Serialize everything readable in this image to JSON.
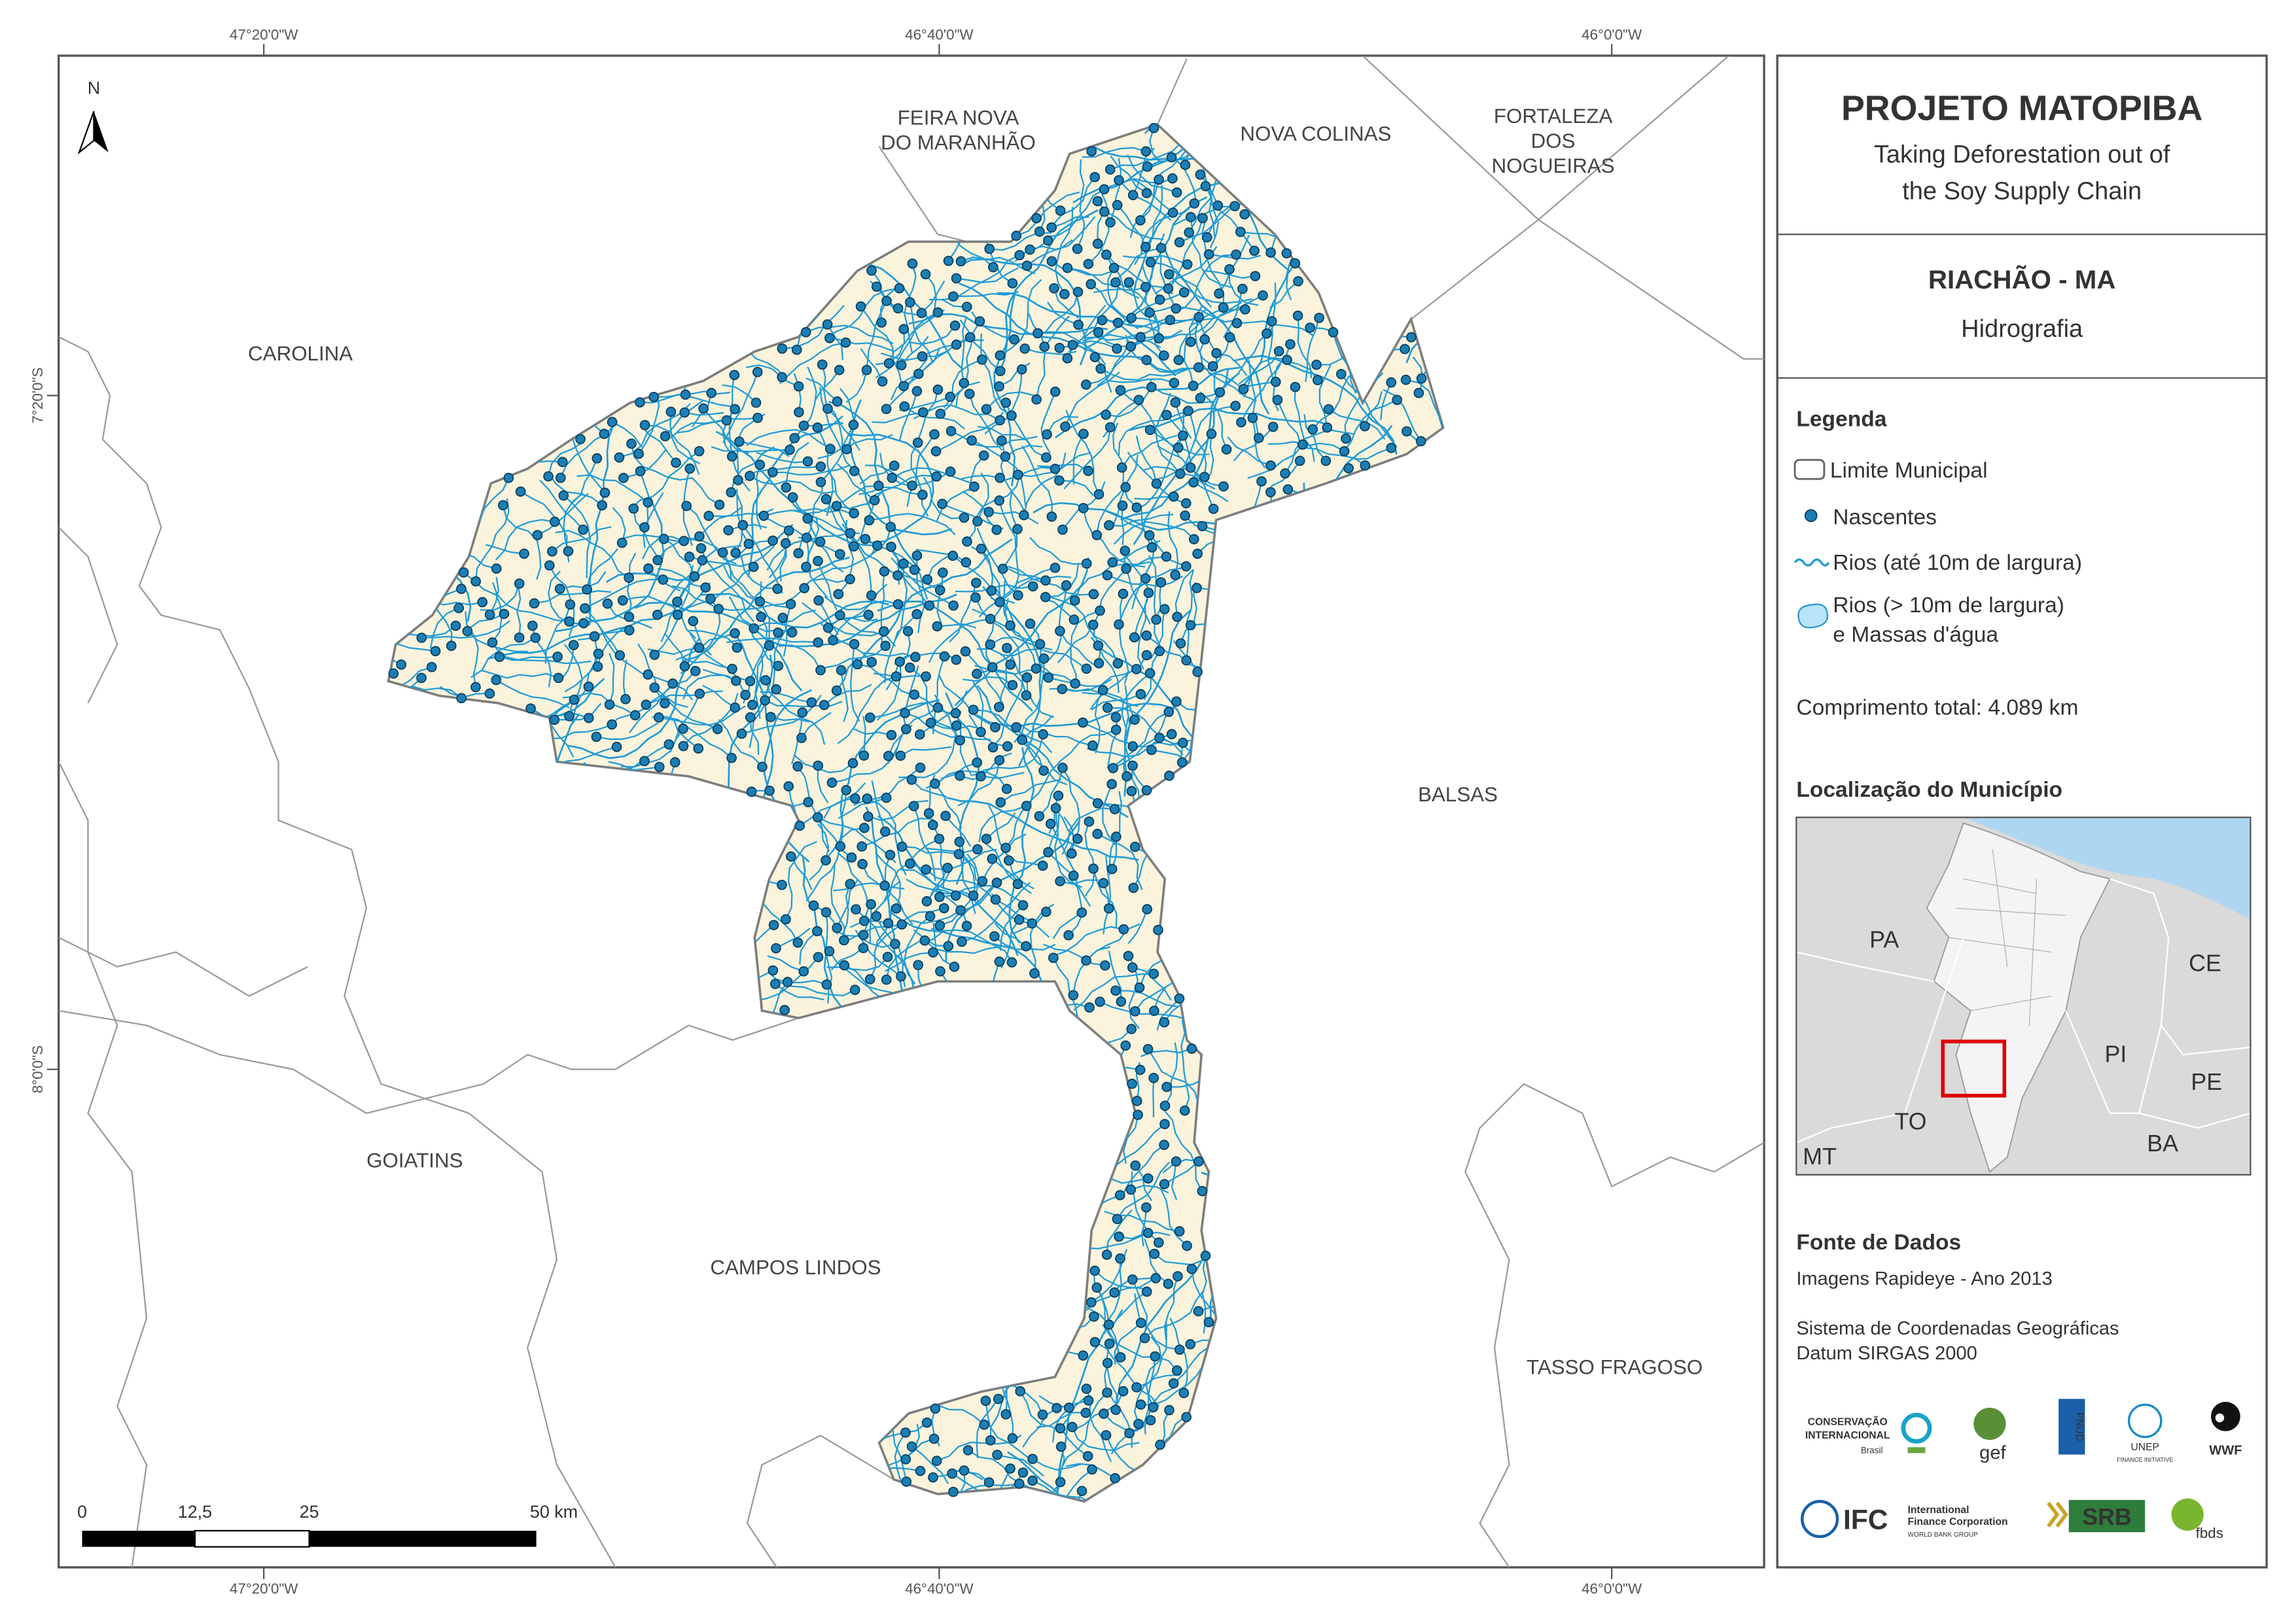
{
  "map": {
    "coordinates_top": [
      "47°20'0\"W",
      "46°40'0\"W",
      "46°0'0\"W"
    ],
    "coordinates_bottom": [
      "47°20'0\"W",
      "46°40'0\"W",
      "46°0'0\"W"
    ],
    "coordinates_left": [
      "7°20'0\"S",
      "8°0'0\"S"
    ],
    "north": "N",
    "places": [
      [
        "FEIRA NOVA",
        "DO MARANHÃO"
      ],
      [
        "NOVA COLINAS"
      ],
      [
        "FORTALEZA",
        "DOS",
        "NOGUEIRAS"
      ],
      [
        "CAROLINA"
      ],
      [
        "BALSAS"
      ],
      [
        "GOIATINS"
      ],
      [
        "CAMPOS LINDOS"
      ],
      [
        "TASSO FRAGOSO"
      ]
    ],
    "scale": [
      "0",
      "12,5",
      "25",
      "50 km"
    ]
  },
  "panel": {
    "title": "PROJETO MATOPIBA",
    "subtitle": [
      "Taking Deforestation out of",
      "the Soy Supply Chain"
    ],
    "municipality": "RIACHÃO - MA",
    "theme": "Hidrografia",
    "legend_title": "Legenda",
    "legend": [
      "Limite Municipal",
      "Nascentes",
      "Rios (até 10m de largura)",
      [
        "Rios (> 10m de largura)",
        "e Massas d'água"
      ]
    ],
    "total": "Comprimento total: 4.089 km",
    "location_title": "Localização do Município",
    "inset_labels": [
      "PA",
      "CE",
      "PI",
      "PE",
      "TO",
      "BA",
      "MT"
    ],
    "sources_title": "Fonte de Dados",
    "sources": [
      "Imagens Rapideye - Ano 2013",
      "Sistema de Coordenadas Geográficas",
      "Datum SIRGAS 2000"
    ],
    "logos": [
      "CONSERVAÇÃO",
      "INTERNACIONAL",
      "Brasil",
      "gef",
      "PNUD",
      "UNEP",
      "FINANCE INITIATIVE",
      "WWF",
      "IFC",
      "International",
      "Finance Corporation",
      "WORLD BANK GROUP",
      "SRB",
      "fbds"
    ]
  }
}
